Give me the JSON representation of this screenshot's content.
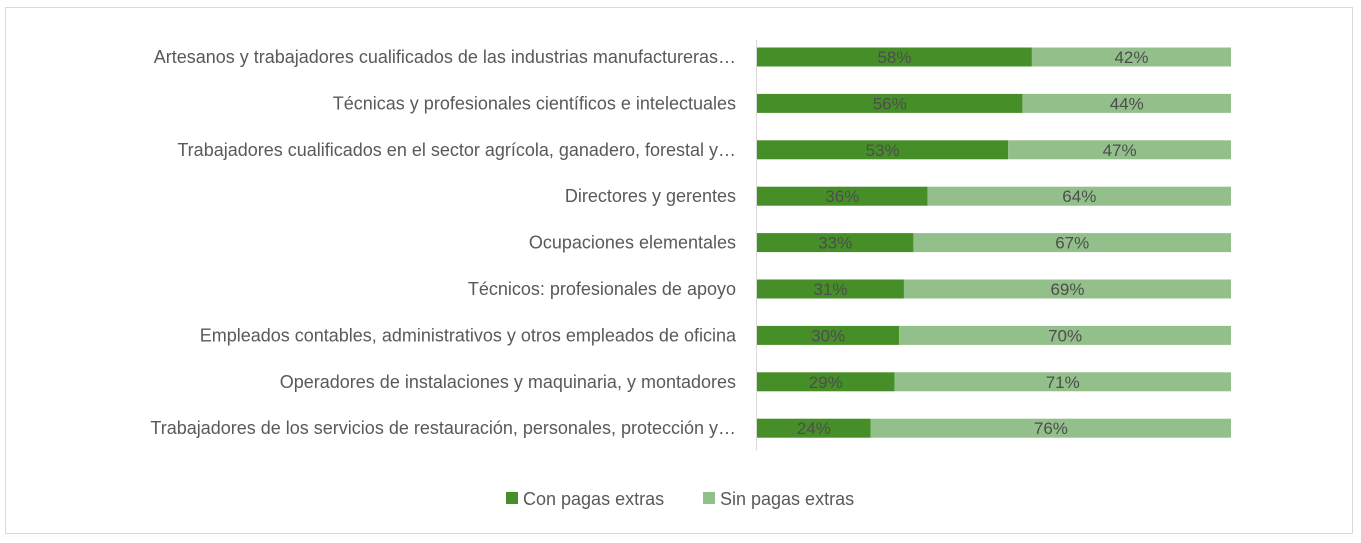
{
  "chart_data": {
    "type": "bar",
    "orientation": "horizontal",
    "stacked": "100%",
    "categories": [
      "Artesanos y trabajadores cualificados de las industrias manufactureras…",
      "Técnicas y profesionales científicos e intelectuales",
      "Trabajadores cualificados en el sector agrícola, ganadero, forestal y…",
      "Directores y gerentes",
      "Ocupaciones elementales",
      "Técnicos: profesionales de apoyo",
      "Empleados contables, administrativos y otros empleados de oficina",
      "Operadores de instalaciones y maquinaria, y montadores",
      "Trabajadores de los servicios de restauración, personales, protección y…"
    ],
    "series": [
      {
        "name": "Con pagas extras",
        "color": "#468f28",
        "values": [
          58,
          56,
          53,
          36,
          33,
          31,
          30,
          29,
          24
        ]
      },
      {
        "name": "Sin pagas extras",
        "color": "#93c08a",
        "values": [
          42,
          44,
          47,
          64,
          67,
          69,
          70,
          71,
          76
        ]
      }
    ],
    "value_suffix": "%",
    "xlim": [
      0,
      100
    ],
    "grid": false,
    "legend": "bottom"
  }
}
